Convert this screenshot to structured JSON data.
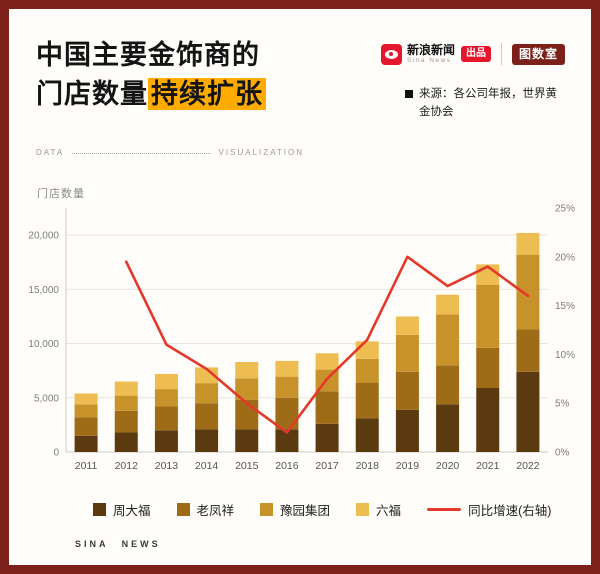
{
  "palette": {
    "page-border": "#7b211a",
    "highlight": "#ffab00",
    "sina-red": "#e6162d",
    "line-red": "#e4382b"
  },
  "header": {
    "title_line1": "中国主要金饰商的",
    "title_line2_prefix": "门店数量",
    "title_line2_highlight": "持续扩张",
    "brand": {
      "sina_name": "新浪新闻",
      "sina_sub": "Sina News",
      "produced_label": "出品",
      "tushushi": "图数室"
    },
    "source_text": "来源：各公司年报，世界黄金协会"
  },
  "divider_row": {
    "left": "DATA",
    "right": "VISUALIZATION"
  },
  "chart_data": {
    "type": "bar",
    "subtype": "stacked-bars-with-line",
    "title": "中国主要金饰商的门店数量持续扩张",
    "categories": [
      "2011",
      "2012",
      "2013",
      "2014",
      "2015",
      "2016",
      "2017",
      "2018",
      "2019",
      "2020",
      "2021",
      "2022"
    ],
    "series": [
      {
        "name": "周大福",
        "color": "#5b3a10",
        "values": [
          1500,
          1800,
          2000,
          2100,
          2100,
          2100,
          2600,
          3100,
          3900,
          4400,
          5900,
          7400
        ]
      },
      {
        "name": "老凤祥",
        "color": "#9e6c17",
        "values": [
          1700,
          2000,
          2200,
          2400,
          2700,
          2900,
          3000,
          3300,
          3500,
          3600,
          3700,
          3900
        ]
      },
      {
        "name": "豫园集团",
        "color": "#c8922a",
        "values": [
          1200,
          1400,
          1600,
          1850,
          2000,
          1950,
          2000,
          2200,
          3400,
          4700,
          5800,
          6900
        ]
      },
      {
        "name": "六福",
        "color": "#eebd52",
        "values": [
          1000,
          1300,
          1400,
          1450,
          1500,
          1450,
          1500,
          1600,
          1700,
          1800,
          1900,
          2000
        ]
      }
    ],
    "line_series": {
      "name": "同比增速(右轴)",
      "color": "#e4382b",
      "axis": "right",
      "values_percent": [
        null,
        19.5,
        11,
        8.5,
        5,
        2,
        7.5,
        11.5,
        20,
        17,
        19,
        16
      ]
    },
    "left_axis": {
      "title": "门店数量",
      "ticks": [
        0,
        5000,
        10000,
        15000,
        20000
      ],
      "max": 22500
    },
    "right_axis": {
      "ticks": [
        0,
        5,
        10,
        15,
        20,
        25
      ],
      "max": 25,
      "unit": "%"
    },
    "grid": true,
    "legend_position": "bottom"
  },
  "footer": {
    "brand": "SINA NEWS"
  }
}
